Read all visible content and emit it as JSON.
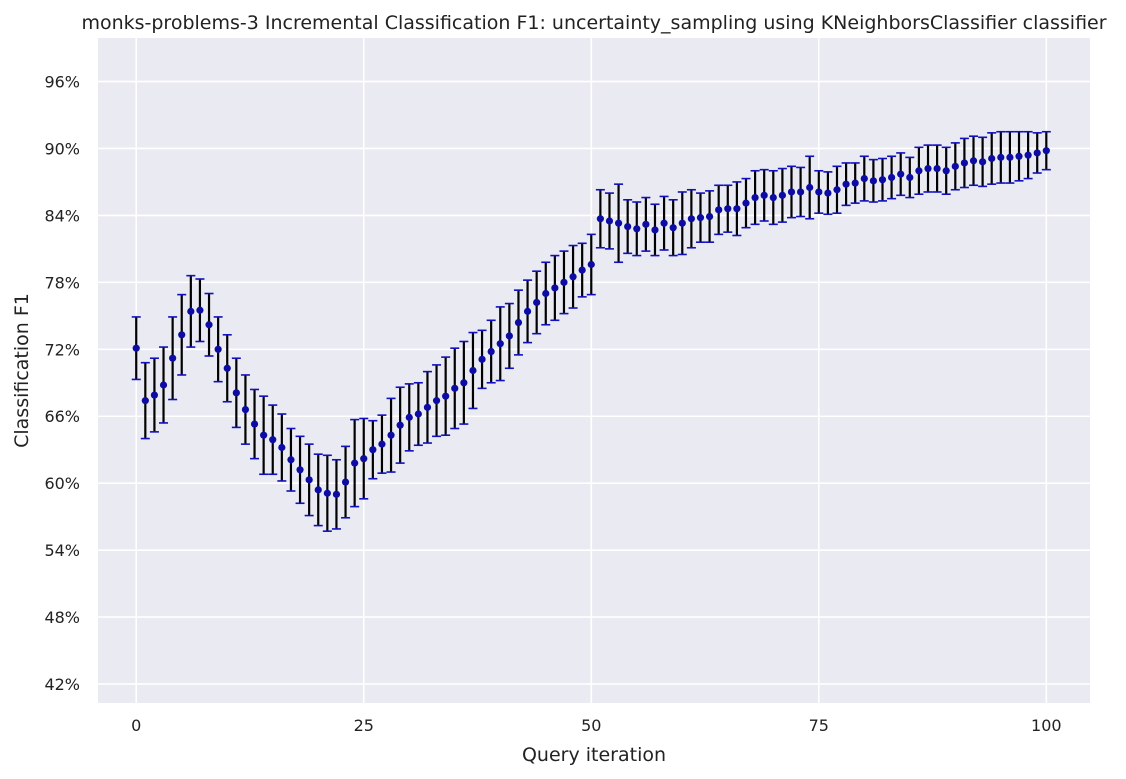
{
  "chart_data": {
    "type": "scatter",
    "title": "monks-problems-3 Incremental Classification F1: uncertainty_sampling using KNeighborsClassifier classifier",
    "xlabel": "Query iteration",
    "ylabel": "Classification F1",
    "xlim": [
      -4.2,
      104.8
    ],
    "ylim": [
      40.3,
      99.9
    ],
    "xticks": [
      0,
      25,
      50,
      75,
      100
    ],
    "xtick_labels": [
      "0",
      "25",
      "50",
      "75",
      "100"
    ],
    "yticks": [
      42,
      48,
      54,
      60,
      66,
      72,
      78,
      84,
      90,
      96
    ],
    "ytick_labels": [
      "42%",
      "48%",
      "54%",
      "60%",
      "66%",
      "72%",
      "78%",
      "84%",
      "90%",
      "96%"
    ],
    "grid": true,
    "legend": "none",
    "colors": {
      "background": "#eaeaf2",
      "grid": "#ffffff",
      "marker": "#0c0ca4",
      "error_bar": "#000000",
      "cap": "#1010c0"
    },
    "series": [
      {
        "x": [
          0,
          1,
          2,
          3,
          4,
          5,
          6,
          7,
          8,
          9,
          10,
          11,
          12,
          13,
          14,
          15,
          16,
          17,
          18,
          19,
          20,
          21,
          22,
          23,
          24,
          25,
          26,
          27,
          28,
          29,
          30,
          31,
          32,
          33,
          34,
          35,
          36,
          37,
          38,
          39,
          40,
          41,
          42,
          43,
          44,
          45,
          46,
          47,
          48,
          49,
          50,
          51,
          52,
          53,
          54,
          55,
          56,
          57,
          58,
          59,
          60,
          61,
          62,
          63,
          64,
          65,
          66,
          67,
          68,
          69,
          70,
          71,
          72,
          73,
          74,
          75,
          76,
          77,
          78,
          79,
          80,
          81,
          82,
          83,
          84,
          85,
          86,
          87,
          88,
          89,
          90,
          91,
          92,
          93,
          94,
          95,
          96,
          97,
          98,
          99,
          100
        ],
        "y": [
          72.1,
          67.4,
          67.9,
          68.8,
          71.2,
          73.3,
          75.4,
          75.5,
          74.2,
          72.0,
          70.3,
          68.1,
          66.6,
          65.3,
          64.3,
          63.9,
          63.2,
          62.1,
          61.2,
          60.3,
          59.4,
          59.1,
          59.0,
          60.1,
          61.8,
          62.2,
          63.0,
          63.5,
          64.3,
          65.2,
          65.9,
          66.2,
          66.8,
          67.4,
          67.8,
          68.5,
          69.0,
          70.1,
          71.1,
          71.8,
          72.5,
          73.2,
          74.4,
          75.4,
          76.2,
          77.0,
          77.5,
          78.0,
          78.5,
          79.1,
          79.6,
          83.7,
          83.5,
          83.3,
          83.0,
          82.8,
          83.2,
          82.7,
          83.3,
          82.9,
          83.3,
          83.7,
          83.8,
          83.9,
          84.5,
          84.6,
          84.6,
          85.1,
          85.6,
          85.8,
          85.6,
          85.8,
          86.1,
          86.1,
          86.5,
          86.1,
          86.0,
          86.3,
          86.8,
          86.9,
          87.3,
          87.1,
          87.2,
          87.4,
          87.7,
          87.4,
          88.0,
          88.2,
          88.2,
          88.0,
          88.4,
          88.7,
          88.9,
          88.8,
          89.1,
          89.2,
          89.2,
          89.3,
          89.4,
          89.6,
          89.8
        ],
        "err": [
          2.8,
          3.4,
          3.3,
          3.4,
          3.7,
          3.6,
          3.2,
          2.8,
          2.8,
          2.9,
          3.0,
          3.1,
          3.1,
          3.1,
          3.5,
          3.1,
          3.0,
          2.8,
          3.0,
          3.2,
          3.2,
          3.4,
          3.1,
          3.2,
          3.9,
          3.6,
          2.6,
          2.6,
          3.3,
          3.4,
          3.0,
          2.8,
          3.2,
          3.2,
          3.5,
          3.6,
          3.7,
          3.4,
          2.6,
          2.8,
          3.3,
          2.9,
          2.9,
          2.8,
          2.8,
          2.8,
          2.9,
          2.8,
          2.8,
          2.4,
          2.7,
          2.6,
          2.5,
          3.5,
          2.4,
          2.4,
          2.4,
          2.3,
          2.4,
          2.5,
          2.8,
          2.6,
          2.2,
          2.3,
          2.2,
          2.1,
          2.4,
          2.2,
          2.4,
          2.3,
          2.4,
          2.4,
          2.3,
          2.2,
          2.8,
          1.9,
          1.9,
          2.1,
          1.9,
          1.8,
          2.0,
          1.9,
          1.9,
          1.9,
          1.9,
          1.8,
          2.1,
          2.1,
          2.1,
          2.1,
          2.1,
          2.2,
          2.2,
          2.2,
          2.3,
          2.3,
          2.3,
          2.2,
          2.1,
          1.8,
          1.7
        ]
      }
    ]
  }
}
